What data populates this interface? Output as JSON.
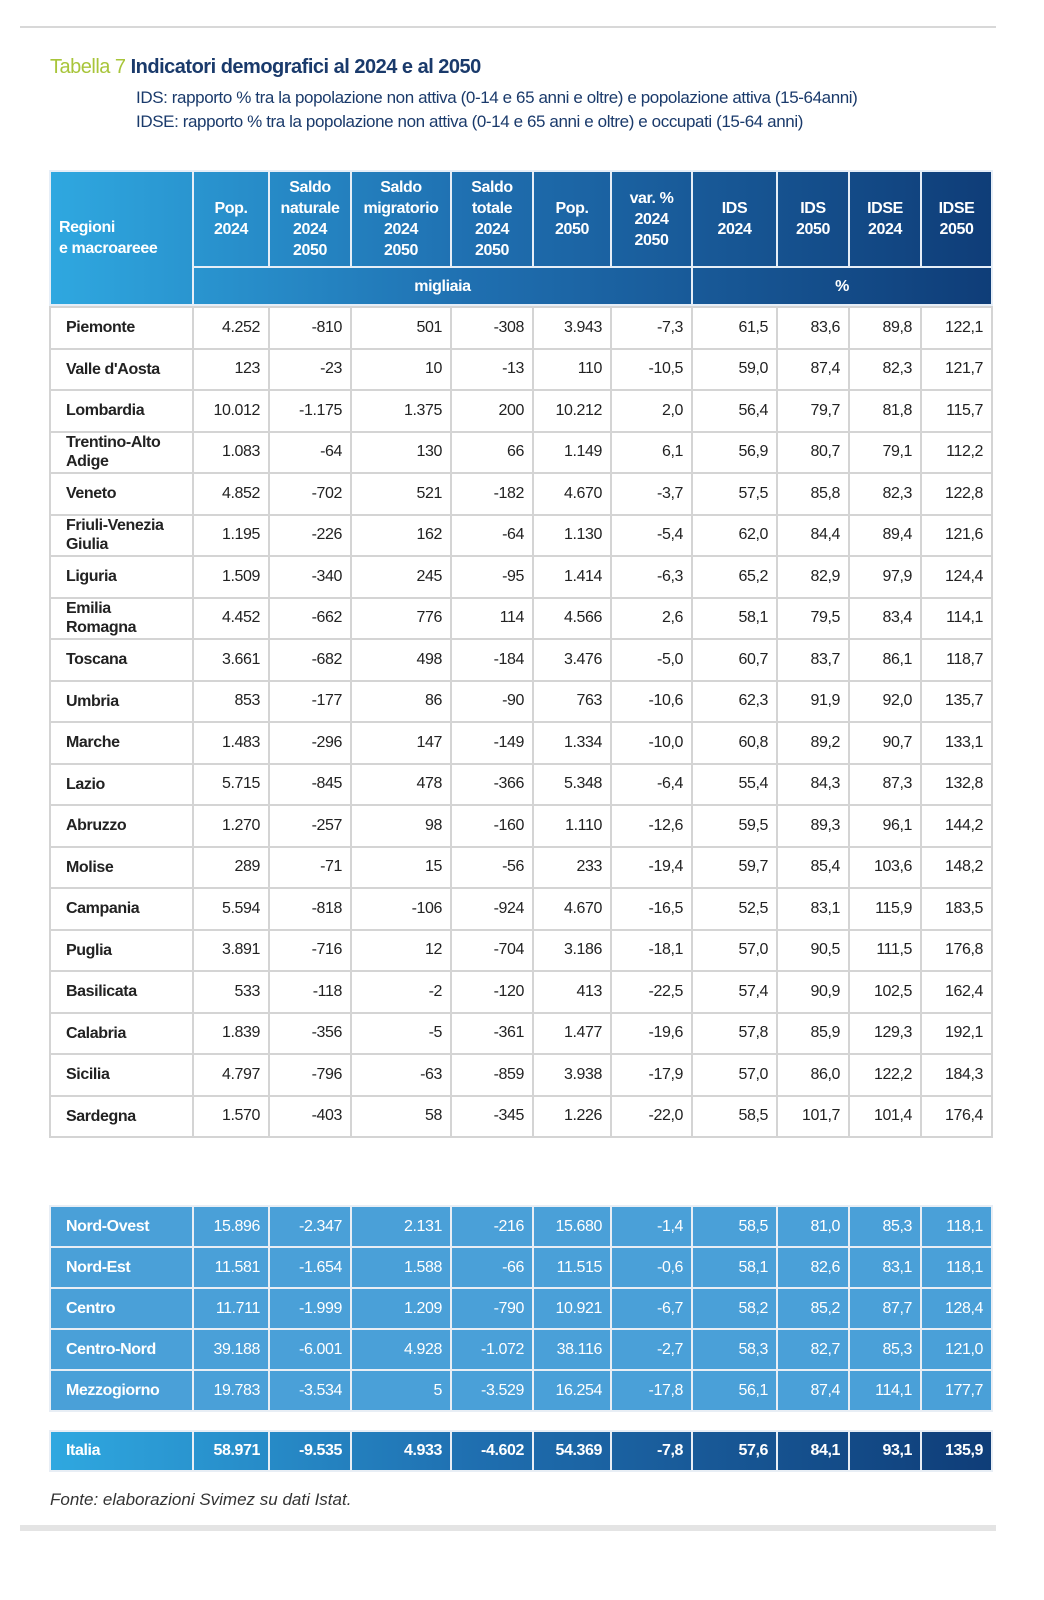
{
  "title": {
    "number": "Tabella 7",
    "text": "Indicatori demografici al 2024 e al 2050"
  },
  "subtitles": [
    "IDS: rapporto % tra la popolazione non attiva (0-14 e 65 anni e oltre) e popolazione attiva (15-64anni)",
    "IDSE: rapporto % tra la popolazione non attiva (0-14 e 65 anni e oltre)  e occupati (15-64 anni)"
  ],
  "columns": [
    "Regioni\ne macroareee",
    "Pop.\n2024",
    "Saldo\nnaturale\n2024\n2050",
    "Saldo\nmigratorio\n2024\n2050",
    "Saldo\ntotale\n2024\n2050",
    "Pop.\n2050",
    "var. %\n2024\n2050",
    "IDS\n2024",
    "IDS\n2050",
    "IDSE\n2024",
    "IDSE\n2050"
  ],
  "units": {
    "left": "migliaia",
    "right": "%"
  },
  "colors": {
    "header_start": "#2fa8e0",
    "header_end": "#0f3d78",
    "macro_bg": "#4aa0d8",
    "title_number": "#a8c53a",
    "title": "#1a3a6b"
  },
  "regions": [
    [
      "Piemonte",
      "4.252",
      "-810",
      "501",
      "-308",
      "3.943",
      "-7,3",
      "61,5",
      "83,6",
      "89,8",
      "122,1"
    ],
    [
      "Valle d'Aosta",
      "123",
      "-23",
      "10",
      "-13",
      "110",
      "-10,5",
      "59,0",
      "87,4",
      "82,3",
      "121,7"
    ],
    [
      "Lombardia",
      "10.012",
      "-1.175",
      "1.375",
      "200",
      "10.212",
      "2,0",
      "56,4",
      "79,7",
      "81,8",
      "115,7"
    ],
    [
      "Trentino-Alto Adige",
      "1.083",
      "-64",
      "130",
      "66",
      "1.149",
      "6,1",
      "56,9",
      "80,7",
      "79,1",
      "112,2"
    ],
    [
      "Veneto",
      "4.852",
      "-702",
      "521",
      "-182",
      "4.670",
      "-3,7",
      "57,5",
      "85,8",
      "82,3",
      "122,8"
    ],
    [
      "Friuli-Venezia Giulia",
      "1.195",
      "-226",
      "162",
      "-64",
      "1.130",
      "-5,4",
      "62,0",
      "84,4",
      "89,4",
      "121,6"
    ],
    [
      "Liguria",
      "1.509",
      "-340",
      "245",
      "-95",
      "1.414",
      "-6,3",
      "65,2",
      "82,9",
      "97,9",
      "124,4"
    ],
    [
      "Emilia Romagna",
      "4.452",
      "-662",
      "776",
      "114",
      "4.566",
      "2,6",
      "58,1",
      "79,5",
      "83,4",
      "114,1"
    ],
    [
      "Toscana",
      "3.661",
      "-682",
      "498",
      "-184",
      "3.476",
      "-5,0",
      "60,7",
      "83,7",
      "86,1",
      "118,7"
    ],
    [
      "Umbria",
      "853",
      "-177",
      "86",
      "-90",
      "763",
      "-10,6",
      "62,3",
      "91,9",
      "92,0",
      "135,7"
    ],
    [
      "Marche",
      "1.483",
      "-296",
      "147",
      "-149",
      "1.334",
      "-10,0",
      "60,8",
      "89,2",
      "90,7",
      "133,1"
    ],
    [
      "Lazio",
      "5.715",
      "-845",
      "478",
      "-366",
      "5.348",
      "-6,4",
      "55,4",
      "84,3",
      "87,3",
      "132,8"
    ],
    [
      "Abruzzo",
      "1.270",
      "-257",
      "98",
      "-160",
      "1.110",
      "-12,6",
      "59,5",
      "89,3",
      "96,1",
      "144,2"
    ],
    [
      "Molise",
      "289",
      "-71",
      "15",
      "-56",
      "233",
      "-19,4",
      "59,7",
      "85,4",
      "103,6",
      "148,2"
    ],
    [
      "Campania",
      "5.594",
      "-818",
      "-106",
      "-924",
      "4.670",
      "-16,5",
      "52,5",
      "83,1",
      "115,9",
      "183,5"
    ],
    [
      "Puglia",
      "3.891",
      "-716",
      "12",
      "-704",
      "3.186",
      "-18,1",
      "57,0",
      "90,5",
      "111,5",
      "176,8"
    ],
    [
      "Basilicata",
      "533",
      "-118",
      "-2",
      "-120",
      "413",
      "-22,5",
      "57,4",
      "90,9",
      "102,5",
      "162,4"
    ],
    [
      "Calabria",
      "1.839",
      "-356",
      "-5",
      "-361",
      "1.477",
      "-19,6",
      "57,8",
      "85,9",
      "129,3",
      "192,1"
    ],
    [
      "Sicilia",
      "4.797",
      "-796",
      "-63",
      "-859",
      "3.938",
      "-17,9",
      "57,0",
      "86,0",
      "122,2",
      "184,3"
    ],
    [
      "Sardegna",
      "1.570",
      "-403",
      "58",
      "-345",
      "1.226",
      "-22,0",
      "58,5",
      "101,7",
      "101,4",
      "176,4"
    ]
  ],
  "macro": [
    [
      "Nord-Ovest",
      "15.896",
      "-2.347",
      "2.131",
      "-216",
      "15.680",
      "-1,4",
      "58,5",
      "81,0",
      "85,3",
      "118,1"
    ],
    [
      "Nord-Est",
      "11.581",
      "-1.654",
      "1.588",
      "-66",
      "11.515",
      "-0,6",
      "58,1",
      "82,6",
      "83,1",
      "118,1"
    ],
    [
      "Centro",
      "11.711",
      "-1.999",
      "1.209",
      "-790",
      "10.921",
      "-6,7",
      "58,2",
      "85,2",
      "87,7",
      "128,4"
    ],
    [
      "Centro-Nord",
      "39.188",
      "-6.001",
      "4.928",
      "-1.072",
      "38.116",
      "-2,7",
      "58,3",
      "82,7",
      "85,3",
      "121,0"
    ],
    [
      "Mezzogiorno",
      "19.783",
      "-3.534",
      "5",
      "-3.529",
      "16.254",
      "-17,8",
      "56,1",
      "87,4",
      "114,1",
      "177,7"
    ]
  ],
  "italia": [
    "Italia",
    "58.971",
    "-9.535",
    "4.933",
    "-4.602",
    "54.369",
    "-7,8",
    "57,6",
    "84,1",
    "93,1",
    "135,9"
  ],
  "source": "Fonte: elaborazioni Svimez su dati Istat."
}
